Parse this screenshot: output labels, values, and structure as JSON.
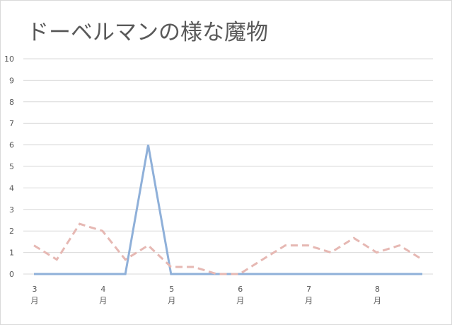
{
  "chart_data": {
    "type": "line",
    "title": "ドーベルマンの様な魔物",
    "xlabel": "",
    "ylabel": "",
    "ylim": [
      0,
      10
    ],
    "yticks": [
      "0",
      "1",
      "2",
      "3",
      "4",
      "5",
      "6",
      "7",
      "8",
      "9",
      "10"
    ],
    "x_major_ticks": [
      {
        "label": "3",
        "sub": "月",
        "index": 0
      },
      {
        "label": "4",
        "sub": "月",
        "index": 3
      },
      {
        "label": "5",
        "sub": "月",
        "index": 6
      },
      {
        "label": "6",
        "sub": "月",
        "index": 9
      },
      {
        "label": "7",
        "sub": "月",
        "index": 12
      },
      {
        "label": "8",
        "sub": "月",
        "index": 15
      }
    ],
    "grid": true,
    "legend": "none",
    "series": [
      {
        "color": "#8fb0d9",
        "style": "solid",
        "values": [
          0,
          0,
          0,
          0,
          0,
          6,
          0,
          0,
          0,
          0,
          0,
          0,
          0,
          0,
          0,
          0,
          0,
          0
        ]
      },
      {
        "color": "#e6b8b3",
        "style": "dashed",
        "values": [
          1.33,
          0.67,
          2.33,
          2,
          0.67,
          1.33,
          0.33,
          0.33,
          0,
          0,
          0.67,
          1.33,
          1.33,
          1,
          1.67,
          1,
          1.33,
          0.67
        ]
      }
    ]
  }
}
